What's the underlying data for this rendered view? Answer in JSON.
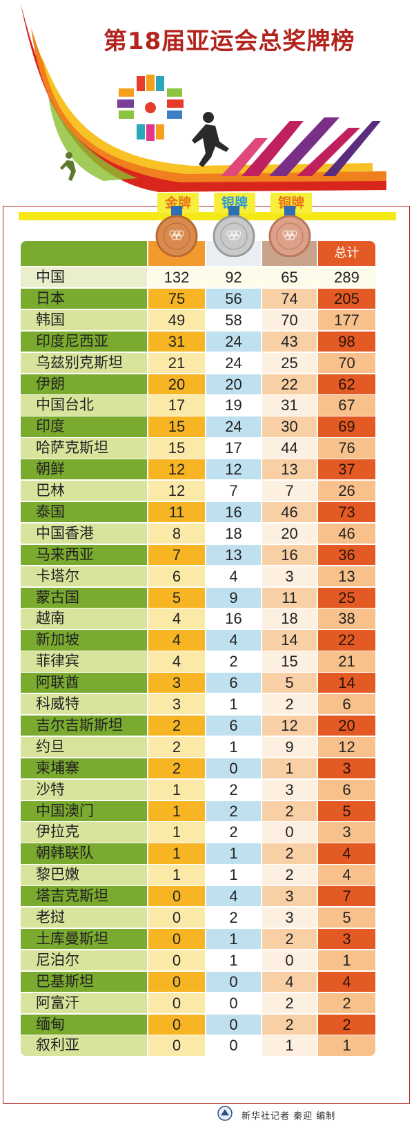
{
  "title": "第18届亚运会总奖牌榜",
  "medal_labels": {
    "gold": "金牌",
    "silver": "银牌",
    "bronze": "铜牌",
    "total": "总计"
  },
  "colors": {
    "green_dark": "#7aaa2e",
    "green_light": "#d8e39c",
    "gold_dark": "#f7b523",
    "gold_light": "#fbeaa7",
    "silver_dark": "#bfe0ef",
    "silver_light": "#ffffff",
    "bronze_dark": "#f9d0a6",
    "bronze_light": "#fdf0e1",
    "total_dark": "#e35a25",
    "total_light": "#f8c08a",
    "title_red": "#b1231c"
  },
  "footer": "新华社记者 秦迎 编制",
  "chart_data": {
    "type": "table",
    "title": "第18届亚运会总奖牌榜",
    "columns": [
      "",
      "金牌",
      "银牌",
      "铜牌",
      "总计"
    ],
    "rows": [
      {
        "name": "中国",
        "gold": 132,
        "silver": 92,
        "bronze": 65,
        "total": 289
      },
      {
        "name": "日本",
        "gold": 75,
        "silver": 56,
        "bronze": 74,
        "total": 205
      },
      {
        "name": "韩国",
        "gold": 49,
        "silver": 58,
        "bronze": 70,
        "total": 177
      },
      {
        "name": "印度尼西亚",
        "gold": 31,
        "silver": 24,
        "bronze": 43,
        "total": 98
      },
      {
        "name": "乌兹别克斯坦",
        "gold": 21,
        "silver": 24,
        "bronze": 25,
        "total": 70
      },
      {
        "name": "伊朗",
        "gold": 20,
        "silver": 20,
        "bronze": 22,
        "total": 62
      },
      {
        "name": "中国台北",
        "gold": 17,
        "silver": 19,
        "bronze": 31,
        "total": 67
      },
      {
        "name": "印度",
        "gold": 15,
        "silver": 24,
        "bronze": 30,
        "total": 69
      },
      {
        "name": "哈萨克斯坦",
        "gold": 15,
        "silver": 17,
        "bronze": 44,
        "total": 76
      },
      {
        "name": "朝鲜",
        "gold": 12,
        "silver": 12,
        "bronze": 13,
        "total": 37
      },
      {
        "name": "巴林",
        "gold": 12,
        "silver": 7,
        "bronze": 7,
        "total": 26
      },
      {
        "name": "泰国",
        "gold": 11,
        "silver": 16,
        "bronze": 46,
        "total": 73
      },
      {
        "name": "中国香港",
        "gold": 8,
        "silver": 18,
        "bronze": 20,
        "total": 46
      },
      {
        "name": "马来西亚",
        "gold": 7,
        "silver": 13,
        "bronze": 16,
        "total": 36
      },
      {
        "name": "卡塔尔",
        "gold": 6,
        "silver": 4,
        "bronze": 3,
        "total": 13
      },
      {
        "name": "蒙古国",
        "gold": 5,
        "silver": 9,
        "bronze": 11,
        "total": 25
      },
      {
        "name": "越南",
        "gold": 4,
        "silver": 16,
        "bronze": 18,
        "total": 38
      },
      {
        "name": "新加坡",
        "gold": 4,
        "silver": 4,
        "bronze": 14,
        "total": 22
      },
      {
        "name": "菲律宾",
        "gold": 4,
        "silver": 2,
        "bronze": 15,
        "total": 21
      },
      {
        "name": "阿联酋",
        "gold": 3,
        "silver": 6,
        "bronze": 5,
        "total": 14
      },
      {
        "name": "科威特",
        "gold": 3,
        "silver": 1,
        "bronze": 2,
        "total": 6
      },
      {
        "name": "吉尔吉斯斯坦",
        "gold": 2,
        "silver": 6,
        "bronze": 12,
        "total": 20
      },
      {
        "name": "约旦",
        "gold": 2,
        "silver": 1,
        "bronze": 9,
        "total": 12
      },
      {
        "name": "柬埔寨",
        "gold": 2,
        "silver": 0,
        "bronze": 1,
        "total": 3
      },
      {
        "name": "沙特",
        "gold": 1,
        "silver": 2,
        "bronze": 3,
        "total": 6
      },
      {
        "name": "中国澳门",
        "gold": 1,
        "silver": 2,
        "bronze": 2,
        "total": 5
      },
      {
        "name": "伊拉克",
        "gold": 1,
        "silver": 2,
        "bronze": 0,
        "total": 3
      },
      {
        "name": "朝韩联队",
        "gold": 1,
        "silver": 1,
        "bronze": 2,
        "total": 4
      },
      {
        "name": "黎巴嫩",
        "gold": 1,
        "silver": 1,
        "bronze": 2,
        "total": 4
      },
      {
        "name": "塔吉克斯坦",
        "gold": 0,
        "silver": 4,
        "bronze": 3,
        "total": 7
      },
      {
        "name": "老挝",
        "gold": 0,
        "silver": 2,
        "bronze": 3,
        "total": 5
      },
      {
        "name": "土库曼斯坦",
        "gold": 0,
        "silver": 1,
        "bronze": 2,
        "total": 3
      },
      {
        "name": "尼泊尔",
        "gold": 0,
        "silver": 1,
        "bronze": 0,
        "total": 1
      },
      {
        "name": "巴基斯坦",
        "gold": 0,
        "silver": 0,
        "bronze": 4,
        "total": 4
      },
      {
        "name": "阿富汗",
        "gold": 0,
        "silver": 0,
        "bronze": 2,
        "total": 2
      },
      {
        "name": "缅甸",
        "gold": 0,
        "silver": 0,
        "bronze": 2,
        "total": 2
      },
      {
        "name": "叙利亚",
        "gold": 0,
        "silver": 0,
        "bronze": 1,
        "total": 1
      }
    ]
  }
}
